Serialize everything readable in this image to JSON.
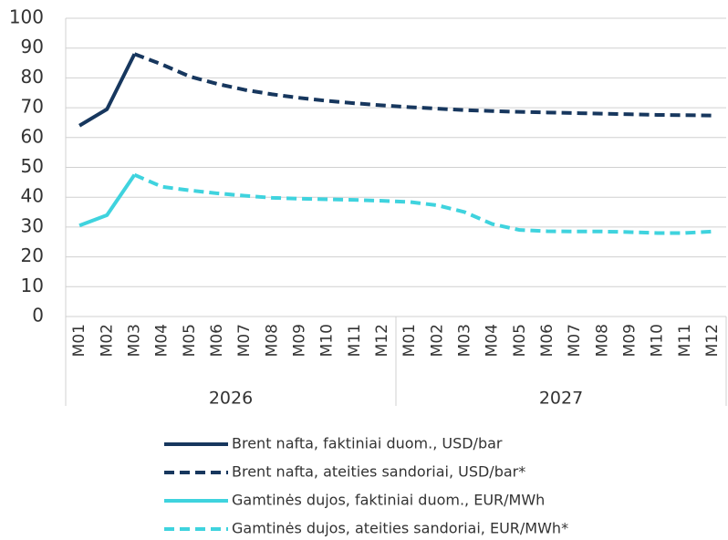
{
  "chart_data": {
    "type": "line",
    "categories": [
      "M01",
      "M02",
      "M03",
      "M04",
      "M05",
      "M06",
      "M07",
      "M08",
      "M09",
      "M10",
      "M11",
      "M12",
      "M01",
      "M02",
      "M03",
      "M04",
      "M05",
      "M06",
      "M07",
      "M08",
      "M09",
      "M10",
      "M11",
      "M12"
    ],
    "groups": [
      "2026",
      "2027"
    ],
    "series": [
      {
        "name": "Brent nafta, faktiniai duom., USD/bar",
        "color": "#17375e",
        "dashed": false,
        "values": [
          64,
          69.5,
          88,
          null,
          null,
          null,
          null,
          null,
          null,
          null,
          null,
          null,
          null,
          null,
          null,
          null,
          null,
          null,
          null,
          null,
          null,
          null,
          null,
          null
        ]
      },
      {
        "name": "Brent nafta, ateities sandoriai, USD/bar*",
        "color": "#17375e",
        "dashed": true,
        "values": [
          null,
          null,
          88,
          84.5,
          80.5,
          78,
          76,
          74.5,
          73.3,
          72.3,
          71.5,
          70.8,
          70.2,
          69.7,
          69.2,
          68.9,
          68.6,
          68.4,
          68.2,
          68,
          67.8,
          67.6,
          67.5,
          67.4
        ]
      },
      {
        "name": "Gamtinės dujos, faktiniai duom., EUR/MWh",
        "color": "#3fd3de",
        "dashed": false,
        "values": [
          30.5,
          34,
          47.5,
          null,
          null,
          null,
          null,
          null,
          null,
          null,
          null,
          null,
          null,
          null,
          null,
          null,
          null,
          null,
          null,
          null,
          null,
          null,
          null,
          null
        ]
      },
      {
        "name": "Gamtinės dujos, ateities sandoriai, EUR/MWh*",
        "color": "#3fd3de",
        "dashed": true,
        "values": [
          null,
          null,
          47.5,
          43.5,
          42.3,
          41.3,
          40.5,
          39.8,
          39.5,
          39.3,
          39.1,
          38.8,
          38.4,
          37.3,
          35,
          31,
          29,
          28.6,
          28.5,
          28.5,
          28.3,
          28,
          28,
          28.5
        ]
      }
    ],
    "ylim": [
      0,
      100
    ],
    "yticks": [
      0,
      10,
      20,
      30,
      40,
      50,
      60,
      70,
      80,
      90,
      100
    ],
    "grid": true
  }
}
